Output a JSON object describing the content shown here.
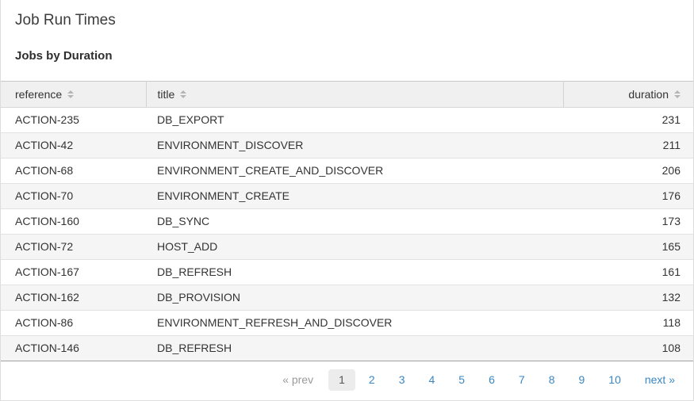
{
  "page": {
    "title": "Job Run Times",
    "subtitle": "Jobs by Duration"
  },
  "table": {
    "columns": [
      {
        "key": "reference",
        "label": "reference",
        "align": "left",
        "sortable": true
      },
      {
        "key": "title",
        "label": "title",
        "align": "left",
        "sortable": true
      },
      {
        "key": "duration",
        "label": "duration",
        "align": "right",
        "sortable": true
      }
    ],
    "rows": [
      {
        "reference": "ACTION-235",
        "title": "DB_EXPORT",
        "duration": 231
      },
      {
        "reference": "ACTION-42",
        "title": "ENVIRONMENT_DISCOVER",
        "duration": 211
      },
      {
        "reference": "ACTION-68",
        "title": "ENVIRONMENT_CREATE_AND_DISCOVER",
        "duration": 206
      },
      {
        "reference": "ACTION-70",
        "title": "ENVIRONMENT_CREATE",
        "duration": 176
      },
      {
        "reference": "ACTION-160",
        "title": "DB_SYNC",
        "duration": 173
      },
      {
        "reference": "ACTION-72",
        "title": "HOST_ADD",
        "duration": 165
      },
      {
        "reference": "ACTION-167",
        "title": "DB_REFRESH",
        "duration": 161
      },
      {
        "reference": "ACTION-162",
        "title": "DB_PROVISION",
        "duration": 132
      },
      {
        "reference": "ACTION-86",
        "title": "ENVIRONMENT_REFRESH_AND_DISCOVER",
        "duration": 118
      },
      {
        "reference": "ACTION-146",
        "title": "DB_REFRESH",
        "duration": 108
      }
    ]
  },
  "pagination": {
    "prev_label": "« prev",
    "next_label": "next »",
    "pages": [
      "1",
      "2",
      "3",
      "4",
      "5",
      "6",
      "7",
      "8",
      "9",
      "10"
    ],
    "active_page": "1"
  },
  "icons": {
    "sort": "sort-icon (stacked up/down triangles)"
  },
  "colors": {
    "link_blue": "#3a87c4",
    "header_bg": "#f0f0f0",
    "alt_row_bg": "#f5f5f5",
    "active_page_bg": "#ececec",
    "table_top_border": "#c8c8c8",
    "table_bottom_border": "#a0a0a0",
    "text": "#333333",
    "muted": "#9a9a9a"
  }
}
